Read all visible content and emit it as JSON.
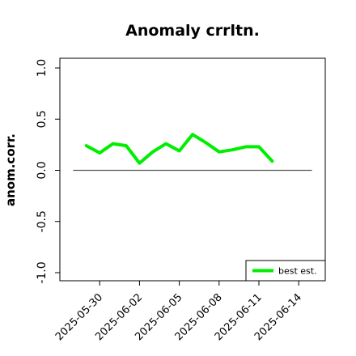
{
  "chart_data": {
    "type": "line",
    "title": "Anomaly crrltn.",
    "xlabel": "",
    "ylabel": "anom.corr.",
    "ylim": [
      -1.0,
      1.0
    ],
    "yticks": [
      "-1.0",
      "-0.5",
      "0.0",
      "0.5",
      "1.0"
    ],
    "xlim": [
      "2025-05-27",
      "2025-06-16"
    ],
    "xticks": [
      "2025-05-30",
      "2025-06-02",
      "2025-06-05",
      "2025-06-08",
      "2025-06-11",
      "2025-06-14"
    ],
    "highlighted_xtick": "2025-06-05",
    "highlight_color": "#228b22",
    "reference_line_y": 0.0,
    "grid": false,
    "legend_position": "bottom-right",
    "series": [
      {
        "name": "best est.",
        "color": "#00ee00",
        "x": [
          "2025-05-29",
          "2025-05-30",
          "2025-05-31",
          "2025-06-01",
          "2025-06-02",
          "2025-06-03",
          "2025-06-04",
          "2025-06-05",
          "2025-06-06",
          "2025-06-07",
          "2025-06-08",
          "2025-06-09",
          "2025-06-10",
          "2025-06-11",
          "2025-06-12"
        ],
        "y": [
          0.24,
          0.17,
          0.26,
          0.24,
          0.07,
          0.18,
          0.26,
          0.19,
          0.35,
          0.27,
          0.18,
          0.2,
          0.23,
          0.23,
          0.09
        ]
      }
    ]
  }
}
